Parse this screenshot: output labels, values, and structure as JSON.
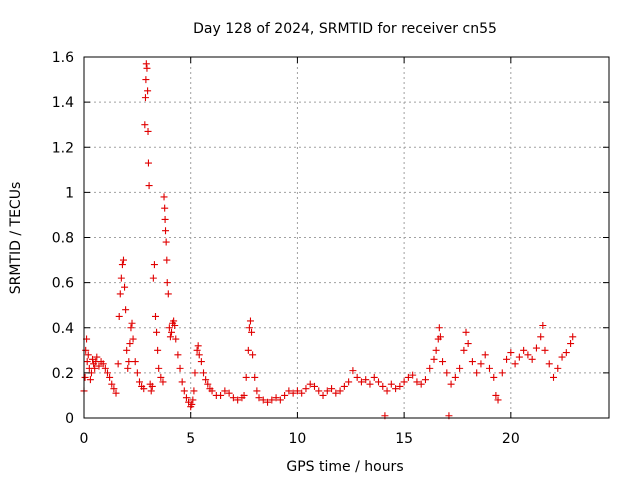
{
  "chart_data": {
    "type": "scatter",
    "title": "Day 128 of 2024, SRMTID for receiver cn55",
    "xlabel": "GPS time / hours",
    "ylabel": "SRMTID / TECUs",
    "xlim": [
      0,
      24.6
    ],
    "ylim": [
      0,
      1.6
    ],
    "xticks": [
      0,
      5,
      10,
      15,
      20
    ],
    "xtick_labels": [
      "0",
      "5",
      "10",
      "15",
      "20"
    ],
    "yticks": [
      0,
      0.2,
      0.4,
      0.6,
      0.8,
      1.0,
      1.2,
      1.4,
      1.6
    ],
    "ytick_labels": [
      "0",
      "0.2",
      "0.4",
      "0.6",
      "0.8",
      "1",
      "1.2",
      "1.4",
      "1.6"
    ],
    "grid": true,
    "marker": "+",
    "color": "#e00000",
    "series": [
      {
        "name": "SRMTID",
        "points": [
          [
            0.0,
            0.12
          ],
          [
            0.05,
            0.18
          ],
          [
            0.08,
            0.3
          ],
          [
            0.12,
            0.35
          ],
          [
            0.15,
            0.25
          ],
          [
            0.2,
            0.28
          ],
          [
            0.25,
            0.22
          ],
          [
            0.3,
            0.17
          ],
          [
            0.35,
            0.2
          ],
          [
            0.4,
            0.26
          ],
          [
            0.45,
            0.24
          ],
          [
            0.5,
            0.22
          ],
          [
            0.55,
            0.25
          ],
          [
            0.6,
            0.27
          ],
          [
            0.7,
            0.23
          ],
          [
            0.8,
            0.25
          ],
          [
            0.9,
            0.24
          ],
          [
            1.0,
            0.22
          ],
          [
            1.1,
            0.2
          ],
          [
            1.2,
            0.18
          ],
          [
            1.3,
            0.15
          ],
          [
            1.4,
            0.13
          ],
          [
            1.5,
            0.11
          ],
          [
            1.6,
            0.24
          ],
          [
            1.65,
            0.45
          ],
          [
            1.7,
            0.55
          ],
          [
            1.75,
            0.62
          ],
          [
            1.8,
            0.68
          ],
          [
            1.85,
            0.7
          ],
          [
            1.9,
            0.58
          ],
          [
            1.95,
            0.48
          ],
          [
            2.0,
            0.3
          ],
          [
            2.05,
            0.22
          ],
          [
            2.1,
            0.25
          ],
          [
            2.15,
            0.33
          ],
          [
            2.2,
            0.4
          ],
          [
            2.25,
            0.42
          ],
          [
            2.3,
            0.35
          ],
          [
            2.4,
            0.25
          ],
          [
            2.5,
            0.2
          ],
          [
            2.6,
            0.16
          ],
          [
            2.7,
            0.14
          ],
          [
            2.8,
            0.13
          ],
          [
            2.85,
            1.3
          ],
          [
            2.88,
            1.42
          ],
          [
            2.9,
            1.5
          ],
          [
            2.92,
            1.57
          ],
          [
            2.95,
            1.55
          ],
          [
            2.98,
            1.45
          ],
          [
            3.0,
            1.27
          ],
          [
            3.02,
            1.13
          ],
          [
            3.05,
            1.03
          ],
          [
            3.1,
            0.15
          ],
          [
            3.15,
            0.12
          ],
          [
            3.2,
            0.14
          ],
          [
            3.25,
            0.62
          ],
          [
            3.3,
            0.68
          ],
          [
            3.35,
            0.45
          ],
          [
            3.4,
            0.38
          ],
          [
            3.45,
            0.3
          ],
          [
            3.5,
            0.22
          ],
          [
            3.6,
            0.18
          ],
          [
            3.7,
            0.16
          ],
          [
            3.75,
            0.98
          ],
          [
            3.78,
            0.93
          ],
          [
            3.8,
            0.88
          ],
          [
            3.82,
            0.83
          ],
          [
            3.85,
            0.78
          ],
          [
            3.88,
            0.7
          ],
          [
            3.9,
            0.6
          ],
          [
            3.95,
            0.55
          ],
          [
            4.0,
            0.4
          ],
          [
            4.05,
            0.36
          ],
          [
            4.1,
            0.38
          ],
          [
            4.15,
            0.42
          ],
          [
            4.2,
            0.43
          ],
          [
            4.25,
            0.41
          ],
          [
            4.3,
            0.35
          ],
          [
            4.4,
            0.28
          ],
          [
            4.5,
            0.22
          ],
          [
            4.6,
            0.16
          ],
          [
            4.7,
            0.12
          ],
          [
            4.8,
            0.09
          ],
          [
            4.9,
            0.07
          ],
          [
            5.0,
            0.05
          ],
          [
            5.05,
            0.06
          ],
          [
            5.1,
            0.08
          ],
          [
            5.15,
            0.12
          ],
          [
            5.2,
            0.2
          ],
          [
            5.3,
            0.3
          ],
          [
            5.35,
            0.32
          ],
          [
            5.4,
            0.28
          ],
          [
            5.5,
            0.25
          ],
          [
            5.6,
            0.2
          ],
          [
            5.7,
            0.17
          ],
          [
            5.8,
            0.15
          ],
          [
            5.9,
            0.13
          ],
          [
            6.0,
            0.12
          ],
          [
            6.2,
            0.1
          ],
          [
            6.4,
            0.1
          ],
          [
            6.6,
            0.12
          ],
          [
            6.8,
            0.11
          ],
          [
            7.0,
            0.09
          ],
          [
            7.2,
            0.08
          ],
          [
            7.4,
            0.09
          ],
          [
            7.5,
            0.1
          ],
          [
            7.6,
            0.18
          ],
          [
            7.7,
            0.3
          ],
          [
            7.75,
            0.4
          ],
          [
            7.8,
            0.43
          ],
          [
            7.85,
            0.38
          ],
          [
            7.9,
            0.28
          ],
          [
            8.0,
            0.18
          ],
          [
            8.1,
            0.12
          ],
          [
            8.2,
            0.09
          ],
          [
            8.4,
            0.08
          ],
          [
            8.6,
            0.07
          ],
          [
            8.8,
            0.08
          ],
          [
            9.0,
            0.09
          ],
          [
            9.2,
            0.08
          ],
          [
            9.4,
            0.1
          ],
          [
            9.6,
            0.12
          ],
          [
            9.8,
            0.11
          ],
          [
            10.0,
            0.12
          ],
          [
            10.2,
            0.11
          ],
          [
            10.4,
            0.13
          ],
          [
            10.6,
            0.15
          ],
          [
            10.8,
            0.14
          ],
          [
            11.0,
            0.12
          ],
          [
            11.2,
            0.1
          ],
          [
            11.4,
            0.12
          ],
          [
            11.6,
            0.13
          ],
          [
            11.8,
            0.11
          ],
          [
            12.0,
            0.12
          ],
          [
            12.2,
            0.14
          ],
          [
            12.4,
            0.16
          ],
          [
            12.6,
            0.21
          ],
          [
            12.8,
            0.18
          ],
          [
            13.0,
            0.16
          ],
          [
            13.2,
            0.17
          ],
          [
            13.4,
            0.15
          ],
          [
            13.6,
            0.18
          ],
          [
            13.8,
            0.16
          ],
          [
            14.0,
            0.14
          ],
          [
            14.1,
            0.01
          ],
          [
            14.2,
            0.12
          ],
          [
            14.4,
            0.15
          ],
          [
            14.6,
            0.13
          ],
          [
            14.8,
            0.14
          ],
          [
            15.0,
            0.16
          ],
          [
            15.2,
            0.18
          ],
          [
            15.4,
            0.19
          ],
          [
            15.6,
            0.16
          ],
          [
            15.8,
            0.15
          ],
          [
            16.0,
            0.17
          ],
          [
            16.2,
            0.22
          ],
          [
            16.4,
            0.26
          ],
          [
            16.5,
            0.3
          ],
          [
            16.6,
            0.35
          ],
          [
            16.65,
            0.4
          ],
          [
            16.7,
            0.36
          ],
          [
            16.8,
            0.25
          ],
          [
            17.0,
            0.2
          ],
          [
            17.1,
            0.01
          ],
          [
            17.2,
            0.15
          ],
          [
            17.4,
            0.18
          ],
          [
            17.6,
            0.22
          ],
          [
            17.8,
            0.3
          ],
          [
            17.9,
            0.38
          ],
          [
            18.0,
            0.33
          ],
          [
            18.2,
            0.25
          ],
          [
            18.4,
            0.2
          ],
          [
            18.6,
            0.24
          ],
          [
            18.8,
            0.28
          ],
          [
            19.0,
            0.22
          ],
          [
            19.2,
            0.18
          ],
          [
            19.3,
            0.1
          ],
          [
            19.4,
            0.08
          ],
          [
            19.6,
            0.2
          ],
          [
            19.8,
            0.26
          ],
          [
            20.0,
            0.29
          ],
          [
            20.2,
            0.24
          ],
          [
            20.4,
            0.27
          ],
          [
            20.6,
            0.3
          ],
          [
            20.8,
            0.28
          ],
          [
            21.0,
            0.26
          ],
          [
            21.2,
            0.31
          ],
          [
            21.4,
            0.36
          ],
          [
            21.5,
            0.41
          ],
          [
            21.6,
            0.3
          ],
          [
            21.8,
            0.24
          ],
          [
            22.0,
            0.18
          ],
          [
            22.2,
            0.22
          ],
          [
            22.4,
            0.27
          ],
          [
            22.6,
            0.29
          ],
          [
            22.8,
            0.33
          ],
          [
            22.9,
            0.36
          ]
        ]
      }
    ]
  }
}
